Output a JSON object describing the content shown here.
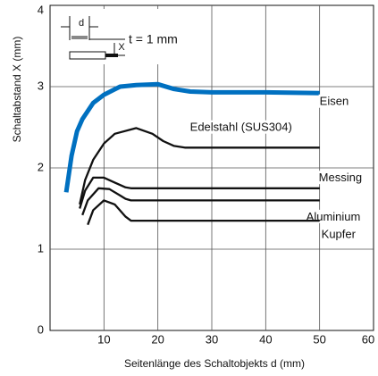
{
  "chart_data": {
    "type": "line",
    "x_label": "Seitenlänge des Schaltobjekts d (mm)",
    "y_label": "Schaltabstand X (mm)",
    "annotations": [
      "t = 1 mm",
      "d",
      "X"
    ],
    "xlim": [
      0,
      60
    ],
    "xticks": [
      10,
      20,
      30,
      40,
      50,
      60
    ],
    "ylim": [
      0,
      4
    ],
    "yticks": [
      0,
      1,
      2,
      3,
      4
    ],
    "grid": true,
    "series": [
      {
        "name": "Eisen",
        "color": "#0070c0",
        "x": [
          3,
          4,
          5,
          6,
          8,
          10,
          13,
          16,
          20,
          23,
          26,
          30,
          40,
          50
        ],
        "values": [
          1.7,
          2.15,
          2.45,
          2.6,
          2.8,
          2.9,
          3.0,
          3.02,
          3.03,
          2.97,
          2.94,
          2.93,
          2.93,
          2.92
        ]
      },
      {
        "name": "Edelstahl (SUS304)",
        "color": "#111111",
        "x": [
          5.5,
          6.5,
          8,
          10,
          12,
          16,
          19,
          21,
          23,
          25,
          30,
          40,
          50
        ],
        "values": [
          1.55,
          1.85,
          2.1,
          2.3,
          2.42,
          2.49,
          2.42,
          2.33,
          2.27,
          2.25,
          2.25,
          2.25,
          2.25
        ]
      },
      {
        "name": "Messing",
        "color": "#111111",
        "x": [
          5.5,
          6.5,
          8,
          10,
          12,
          14,
          15,
          20,
          30,
          40,
          50
        ],
        "values": [
          1.5,
          1.72,
          1.88,
          1.88,
          1.82,
          1.76,
          1.75,
          1.75,
          1.75,
          1.75,
          1.75
        ]
      },
      {
        "name": "Aluminium",
        "color": "#111111",
        "x": [
          6,
          7,
          9,
          11,
          13,
          14,
          15,
          20,
          30,
          40,
          50
        ],
        "values": [
          1.42,
          1.6,
          1.75,
          1.74,
          1.66,
          1.62,
          1.6,
          1.6,
          1.6,
          1.6,
          1.6
        ]
      },
      {
        "name": "Kupfer",
        "color": "#111111",
        "x": [
          7,
          8,
          10,
          12,
          14,
          15,
          20,
          30,
          40,
          50
        ],
        "values": [
          1.3,
          1.48,
          1.6,
          1.55,
          1.4,
          1.35,
          1.35,
          1.35,
          1.35,
          1.35
        ]
      }
    ]
  }
}
